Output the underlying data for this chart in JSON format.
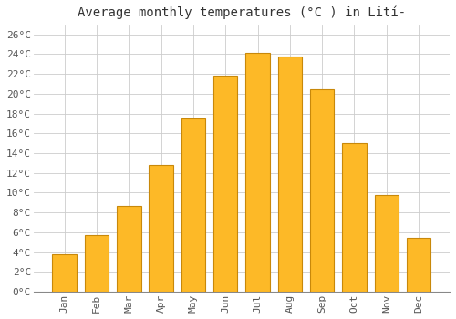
{
  "title": "Average monthly temperatures (°C ) in Lití-",
  "months": [
    "Jan",
    "Feb",
    "Mar",
    "Apr",
    "May",
    "Jun",
    "Jul",
    "Aug",
    "Sep",
    "Oct",
    "Nov",
    "Dec"
  ],
  "temperatures": [
    3.8,
    5.7,
    8.7,
    12.8,
    17.5,
    21.8,
    24.1,
    23.8,
    20.4,
    15.0,
    9.8,
    5.4
  ],
  "bar_color": "#FDB927",
  "bar_edge_color": "#C8880A",
  "background_color": "#FFFFFF",
  "grid_color": "#CCCCCC",
  "ytick_labels": [
    "0°C",
    "2°C",
    "4°C",
    "6°C",
    "8°C",
    "10°C",
    "12°C",
    "14°C",
    "16°C",
    "18°C",
    "20°C",
    "22°C",
    "24°C",
    "26°C"
  ],
  "ytick_values": [
    0,
    2,
    4,
    6,
    8,
    10,
    12,
    14,
    16,
    18,
    20,
    22,
    24,
    26
  ],
  "ylim": [
    0,
    27
  ],
  "title_fontsize": 10,
  "tick_fontsize": 8,
  "title_font": "monospace",
  "tick_font": "monospace"
}
